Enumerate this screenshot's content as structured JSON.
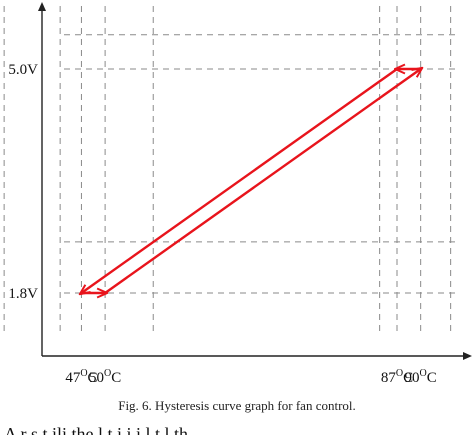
{
  "chart_data": {
    "type": "line",
    "title": "",
    "xlabel": "",
    "ylabel": "",
    "x_ticks": [
      {
        "value": 47,
        "label": "47",
        "sup": "O",
        "unit": "C"
      },
      {
        "value": 50,
        "label": "50",
        "sup": "O",
        "unit": "C"
      },
      {
        "value": 87,
        "label": "87",
        "sup": "O",
        "unit": "C"
      },
      {
        "value": 90,
        "label": "90",
        "sup": "O",
        "unit": "C"
      }
    ],
    "y_ticks": [
      {
        "value": 1.8,
        "label": "1.8V"
      },
      {
        "value": 5.0,
        "label": "5.0V"
      }
    ],
    "extra_grid_x": [
      37.2,
      44.3,
      56.1,
      84.8,
      93.8
    ],
    "extra_grid_y": [
      2.53,
      5.49
    ],
    "xlim": [
      42,
      96
    ],
    "ylim": [
      0.9,
      5.9
    ],
    "series": [
      {
        "values": [
          {
            "x": 47,
            "y": 1.8
          },
          {
            "x": 50,
            "y": 1.8
          },
          {
            "x": 90,
            "y": 5.0
          },
          {
            "x": 87,
            "y": 5.0
          },
          {
            "x": 47,
            "y": 1.8
          }
        ],
        "color": "#e8141c"
      }
    ],
    "grid": true,
    "grid_style": "dashed"
  },
  "caption": "Fig. 6. Hysteresis curve graph for fan control.",
  "bottom_cut_text": "A    r      s    t  ili    the  l    t    i     i   i  l    t    l    th"
}
